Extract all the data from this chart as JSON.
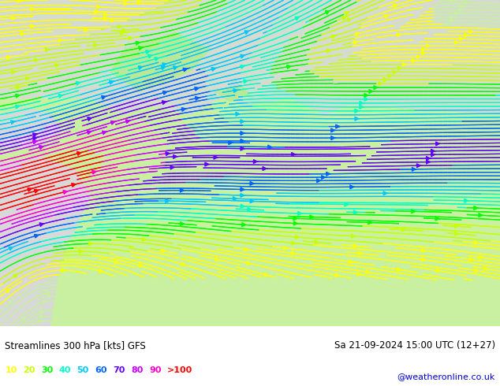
{
  "title_left": "Streamlines 300 hPa [kts] GFS",
  "title_right": "Sa 21-09-2024 15:00 UTC (12+27)",
  "credit": "@weatheronline.co.uk",
  "legend_values": [
    "10",
    "20",
    "30",
    "40",
    "50",
    "60",
    "70",
    "80",
    "90",
    ">100"
  ],
  "legend_colors": [
    "#ffff00",
    "#c8ff00",
    "#00ff00",
    "#00ffc8",
    "#00c8ff",
    "#0064ff",
    "#6400ff",
    "#c800ff",
    "#ff00c8",
    "#ff0000"
  ],
  "speed_levels": [
    0,
    10,
    20,
    30,
    40,
    50,
    60,
    70,
    80,
    90,
    100,
    200
  ],
  "bg_color": "#ffffff",
  "map_bg_land": "#c8f0a0",
  "map_bg_ocean": "#d8d8d8",
  "figsize": [
    6.34,
    4.9
  ],
  "dpi": 100
}
